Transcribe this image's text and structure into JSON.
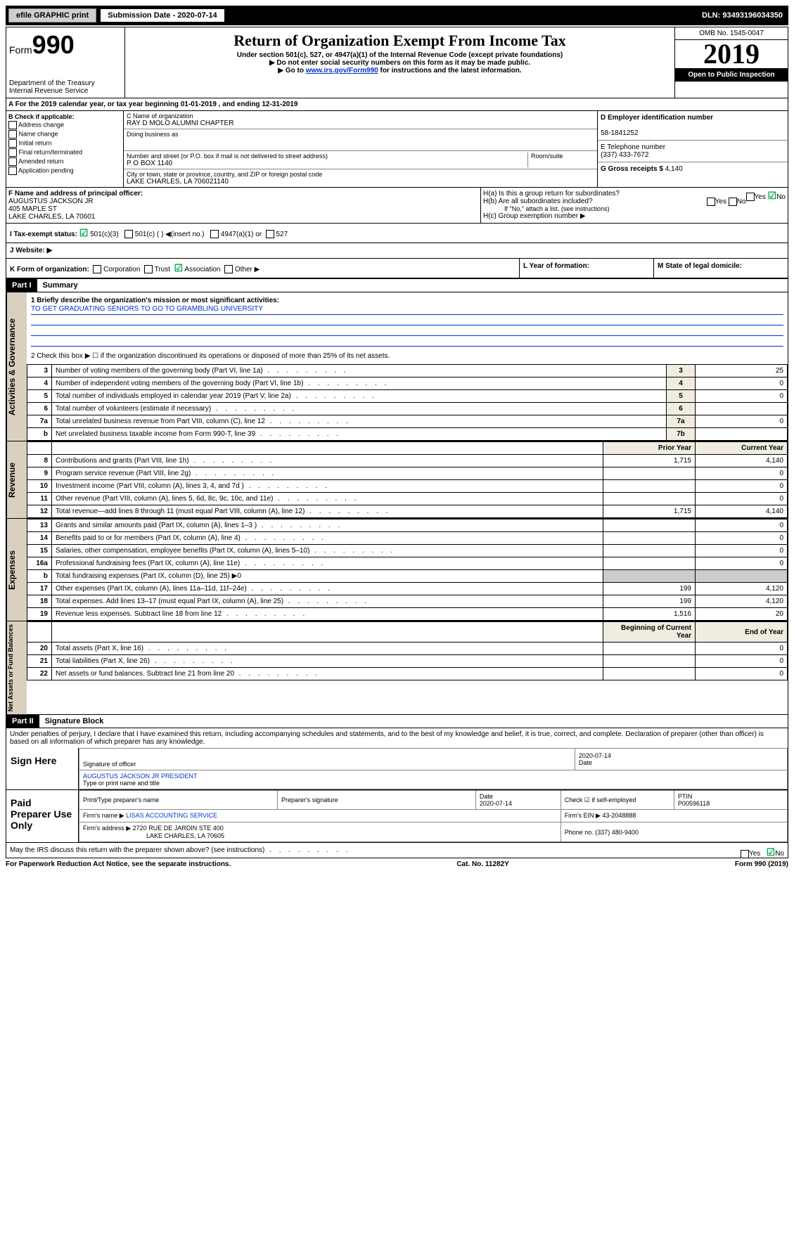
{
  "top": {
    "efile": "efile GRAPHIC print",
    "subdate_label": "Submission Date - 2020-07-14",
    "dln": "DLN: 93493196034350"
  },
  "header": {
    "form_label": "Form",
    "form_no": "990",
    "dept": "Department of the Treasury\nInternal Revenue Service",
    "title": "Return of Organization Exempt From Income Tax",
    "sub1": "Under section 501(c), 527, or 4947(a)(1) of the Internal Revenue Code (except private foundations)",
    "sub2": "▶ Do not enter social security numbers on this form as it may be made public.",
    "sub3": "▶ Go to ",
    "sub3_link": "www.irs.gov/Form990",
    "sub3_tail": " for instructions and the latest information.",
    "omb": "OMB No. 1545-0047",
    "year": "2019",
    "open": "Open to Public Inspection"
  },
  "rowA": "A  For the 2019 calendar year, or tax year beginning 01-01-2019    , and ending 12-31-2019",
  "boxB": {
    "label": "B Check if applicable:",
    "opts": [
      "Address change",
      "Name change",
      "Initial return",
      "Final return/terminated",
      "Amended return",
      "Application pending"
    ]
  },
  "boxC": {
    "name_lbl": "C Name of organization",
    "name": "RAY D MOLO ALUMNI CHAPTER",
    "dba_lbl": "Doing business as",
    "dba": "",
    "street_lbl": "Number and street (or P.O. box if mail is not delivered to street address)",
    "room_lbl": "Room/suite",
    "street": "P O BOX 1140",
    "city_lbl": "City or town, state or province, country, and ZIP or foreign postal code",
    "city": "LAKE CHARLES, LA  706021140"
  },
  "boxD": {
    "lbl": "D Employer identification number",
    "val": "58-1841252"
  },
  "boxE": {
    "lbl": "E Telephone number",
    "val": "(337) 433-7672"
  },
  "boxG": {
    "lbl": "G Gross receipts $",
    "val": "4,140"
  },
  "boxF": {
    "lbl": "F  Name and address of principal officer:",
    "name": "AUGUSTUS JACKSON JR",
    "street": "405 MAPLE ST",
    "city": "LAKE CHARLES, LA  70601"
  },
  "boxH": {
    "a": "H(a)  Is this a group return for subordinates?",
    "b": "H(b)  Are all subordinates included?",
    "b_note": "If \"No,\" attach a list. (see instructions)",
    "c": "H(c)  Group exemption number ▶"
  },
  "rowI": {
    "lbl": "I    Tax-exempt status:",
    "opt1": "501(c)(3)",
    "opt2": "501(c) (   ) ◀(insert no.)",
    "opt3": "4947(a)(1) or",
    "opt4": "527"
  },
  "rowJ": "J    Website: ▶",
  "rowK": {
    "lbl": "K Form of organization:",
    "opts": [
      "Corporation",
      "Trust",
      "Association",
      "Other ▶"
    ],
    "l": "L Year of formation:",
    "m": "M State of legal domicile:"
  },
  "part1": {
    "hdr": "Part I",
    "title": "Summary",
    "side1": "Activities & Governance",
    "line1_lbl": "1  Briefly describe the organization's mission or most significant activities:",
    "line1_val": "TO GET GRADUATING SENIORS TO GO TO GRAMBLING UNIVERSITY",
    "line2": "2  Check this box ▶ ☐  if the organization discontinued its operations or disposed of more than 25% of its net assets.",
    "rows_gov": [
      {
        "n": "3",
        "d": "Number of voting members of the governing body (Part VI, line 1a)",
        "ln": "3",
        "v": "25"
      },
      {
        "n": "4",
        "d": "Number of independent voting members of the governing body (Part VI, line 1b)",
        "ln": "4",
        "v": "0"
      },
      {
        "n": "5",
        "d": "Total number of individuals employed in calendar year 2019 (Part V, line 2a)",
        "ln": "5",
        "v": "0"
      },
      {
        "n": "6",
        "d": "Total number of volunteers (estimate if necessary)",
        "ln": "6",
        "v": ""
      },
      {
        "n": "7a",
        "d": "Total unrelated business revenue from Part VIII, column (C), line 12",
        "ln": "7a",
        "v": "0"
      },
      {
        "n": "b",
        "d": "Net unrelated business taxable income from Form 990-T, line 39",
        "ln": "7b",
        "v": ""
      }
    ],
    "side2": "Revenue",
    "hdr_prior": "Prior Year",
    "hdr_curr": "Current Year",
    "rows_rev": [
      {
        "n": "8",
        "d": "Contributions and grants (Part VIII, line 1h)",
        "p": "1,715",
        "c": "4,140"
      },
      {
        "n": "9",
        "d": "Program service revenue (Part VIII, line 2g)",
        "p": "",
        "c": "0"
      },
      {
        "n": "10",
        "d": "Investment income (Part VIII, column (A), lines 3, 4, and 7d )",
        "p": "",
        "c": "0"
      },
      {
        "n": "11",
        "d": "Other revenue (Part VIII, column (A), lines 5, 6d, 8c, 9c, 10c, and 11e)",
        "p": "",
        "c": "0"
      },
      {
        "n": "12",
        "d": "Total revenue—add lines 8 through 11 (must equal Part VIII, column (A), line 12)",
        "p": "1,715",
        "c": "4,140"
      }
    ],
    "side3": "Expenses",
    "rows_exp": [
      {
        "n": "13",
        "d": "Grants and similar amounts paid (Part IX, column (A), lines 1–3 )",
        "p": "",
        "c": "0"
      },
      {
        "n": "14",
        "d": "Benefits paid to or for members (Part IX, column (A), line 4)",
        "p": "",
        "c": "0"
      },
      {
        "n": "15",
        "d": "Salaries, other compensation, employee benefits (Part IX, column (A), lines 5–10)",
        "p": "",
        "c": "0"
      },
      {
        "n": "16a",
        "d": "Professional fundraising fees (Part IX, column (A), line 11e)",
        "p": "",
        "c": "0"
      },
      {
        "n": "b",
        "d": "Total fundraising expenses (Part IX, column (D), line 25) ▶0",
        "p": "—",
        "c": "—"
      },
      {
        "n": "17",
        "d": "Other expenses (Part IX, column (A), lines 11a–11d, 11f–24e)",
        "p": "199",
        "c": "4,120"
      },
      {
        "n": "18",
        "d": "Total expenses. Add lines 13–17 (must equal Part IX, column (A), line 25)",
        "p": "199",
        "c": "4,120"
      },
      {
        "n": "19",
        "d": "Revenue less expenses. Subtract line 18 from line 12",
        "p": "1,516",
        "c": "20"
      }
    ],
    "side4": "Net Assets or Fund Balances",
    "hdr_beg": "Beginning of Current Year",
    "hdr_end": "End of Year",
    "rows_net": [
      {
        "n": "20",
        "d": "Total assets (Part X, line 16)",
        "p": "",
        "c": "0"
      },
      {
        "n": "21",
        "d": "Total liabilities (Part X, line 26)",
        "p": "",
        "c": "0"
      },
      {
        "n": "22",
        "d": "Net assets or fund balances. Subtract line 21 from line 20",
        "p": "",
        "c": "0"
      }
    ]
  },
  "part2": {
    "hdr": "Part II",
    "title": "Signature Block",
    "perjury": "Under penalties of perjury, I declare that I have examined this return, including accompanying schedules and statements, and to the best of my knowledge and belief, it is true, correct, and complete. Declaration of preparer (other than officer) is based on all information of which preparer has any knowledge.",
    "sign_here": "Sign Here",
    "sig_officer": "Signature of officer",
    "date": "2020-07-14",
    "date_lbl": "Date",
    "officer_name": "AUGUSTUS JACKSON JR  PRESIDENT",
    "officer_lbl": "Type or print name and title",
    "paid": "Paid Preparer Use Only",
    "prep_name_lbl": "Print/Type preparer's name",
    "prep_sig_lbl": "Preparer's signature",
    "prep_date_lbl": "Date",
    "prep_date": "2020-07-14",
    "check_self": "Check ☑ if self-employed",
    "ptin_lbl": "PTIN",
    "ptin": "P00596118",
    "firm_name_lbl": "Firm's name   ▶",
    "firm_name": "LISAS ACCOUNTING SERVICE",
    "firm_ein_lbl": "Firm's EIN ▶",
    "firm_ein": "43-2048888",
    "firm_addr_lbl": "Firm's address ▶",
    "firm_addr1": "2720 RUE DE JARDIN STE 400",
    "firm_addr2": "LAKE CHARLES, LA  70605",
    "phone_lbl": "Phone no.",
    "phone": "(337) 480-9400",
    "discuss": "May the IRS discuss this return with the preparer shown above? (see instructions)",
    "yes": "Yes",
    "no": "No"
  },
  "footer": {
    "pra": "For Paperwork Reduction Act Notice, see the separate instructions.",
    "cat": "Cat. No. 11282Y",
    "form": "Form 990 (2019)"
  }
}
